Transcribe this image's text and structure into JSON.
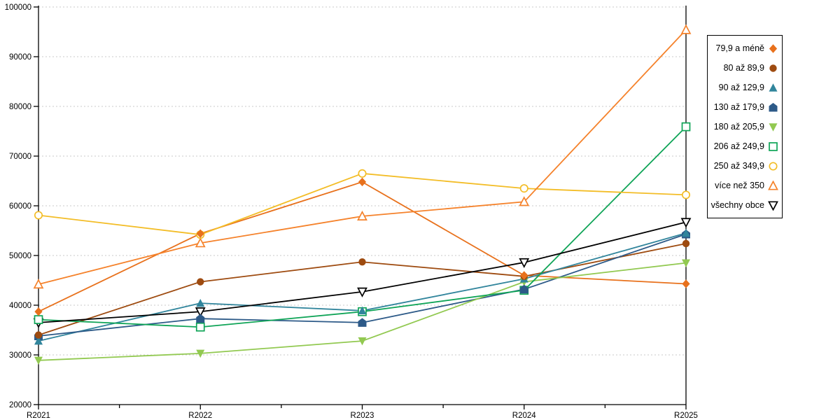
{
  "chart_data": {
    "type": "line",
    "categories": [
      "R2021",
      "R2022",
      "R2023",
      "R2024",
      "R2025"
    ],
    "ylim": [
      20000,
      100000
    ],
    "ytick_step": 10000,
    "yticklabels": [
      "100000",
      "90000",
      "80000",
      "70000",
      "60000",
      "50000",
      "40000",
      "30000",
      "20000"
    ],
    "grid": "horizontal-dashed",
    "legend_position": "right",
    "background_color": "#ffffff",
    "axis_color": "#000000",
    "gridline_color": "#c8c8c8",
    "series": [
      {
        "name": "79,9 a méně",
        "marker": "diamond-filled",
        "color": "#E8711C",
        "values": [
          38700,
          54400,
          64800,
          46000,
          44300
        ]
      },
      {
        "name": "80 až 89,9",
        "marker": "circle-filled",
        "color": "#9E4B10",
        "values": [
          34000,
          44700,
          48700,
          45800,
          52400
        ]
      },
      {
        "name": "90 až 129,9",
        "marker": "triangle-up-filled",
        "color": "#31859C",
        "values": [
          32800,
          40400,
          38900,
          45300,
          54500
        ]
      },
      {
        "name": "130 až 179,9",
        "marker": "pentagon-filled",
        "color": "#2D5A88",
        "values": [
          33800,
          37300,
          36500,
          43200,
          54300
        ]
      },
      {
        "name": "180 až 205,9",
        "marker": "triangle-down-filled",
        "color": "#92C951",
        "values": [
          28900,
          30300,
          32800,
          44700,
          48500
        ]
      },
      {
        "name": "206 až 249,9",
        "marker": "square-open",
        "color": "#0FA457",
        "values": [
          37100,
          35600,
          38700,
          43000,
          75900
        ]
      },
      {
        "name": "250 až 349,9",
        "marker": "circle-open",
        "color": "#F3BD27",
        "values": [
          58100,
          54200,
          66500,
          63500,
          62200
        ]
      },
      {
        "name": "více než 350",
        "marker": "triangle-up-open",
        "color": "#F5822B",
        "values": [
          44200,
          52500,
          57900,
          60800,
          95400
        ]
      },
      {
        "name": "všechny obce",
        "marker": "triangle-down-open",
        "color": "#000000",
        "values": [
          36500,
          38700,
          42700,
          48600,
          56700
        ]
      }
    ]
  }
}
